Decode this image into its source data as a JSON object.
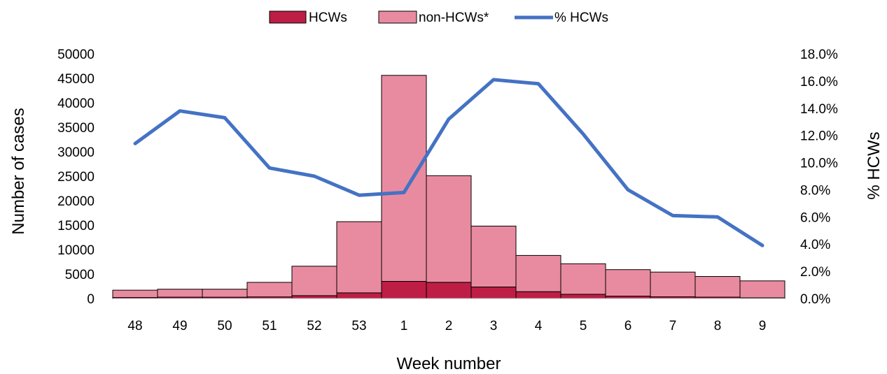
{
  "chart_data": {
    "type": "bar",
    "stacked": true,
    "categories": [
      "48",
      "49",
      "50",
      "51",
      "52",
      "53",
      "1",
      "2",
      "3",
      "4",
      "5",
      "6",
      "7",
      "8",
      "9"
    ],
    "series": [
      {
        "name": "HCWs",
        "kind": "bar",
        "axis": "left",
        "color": "#BE1E45",
        "values": [
          190,
          260,
          250,
          310,
          580,
          1150,
          3500,
          3300,
          2350,
          1380,
          860,
          470,
          330,
          270,
          140
        ]
      },
      {
        "name": "non-HCWs*",
        "kind": "bar",
        "axis": "left",
        "color": "#E98BA0",
        "values": [
          1510,
          1640,
          1650,
          2990,
          6020,
          14550,
          42100,
          21800,
          12450,
          7420,
          6240,
          5430,
          5070,
          4230,
          3460
        ]
      },
      {
        "name": "% HCWs",
        "kind": "line",
        "axis": "right",
        "color": "#4472C4",
        "values": [
          11.4,
          13.8,
          13.3,
          9.6,
          9.0,
          7.6,
          7.8,
          13.2,
          16.1,
          15.8,
          12.1,
          8.0,
          6.1,
          6.0,
          3.9
        ]
      }
    ],
    "xlabel": "Week number",
    "ylabel": "Number of cases",
    "y2label": "% HCWs",
    "ylim": [
      0,
      50000
    ],
    "yticks": [
      "0",
      "5000",
      "10000",
      "15000",
      "20000",
      "25000",
      "30000",
      "35000",
      "40000",
      "45000",
      "50000"
    ],
    "y2lim": [
      0,
      18
    ],
    "y2ticks": [
      "0.0%",
      "2.0%",
      "4.0%",
      "6.0%",
      "8.0%",
      "10.0%",
      "12.0%",
      "14.0%",
      "16.0%",
      "18.0%"
    ],
    "legend_position": "top",
    "grid": false
  }
}
